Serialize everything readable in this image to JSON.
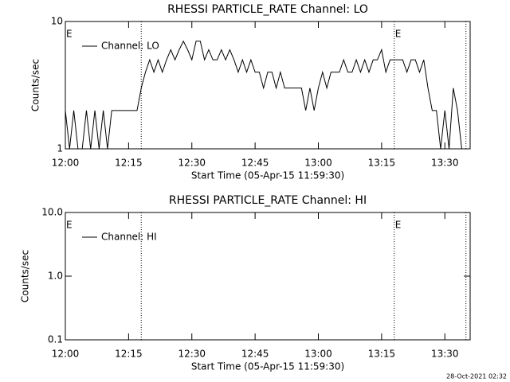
{
  "chart_data": [
    {
      "type": "line",
      "title": "RHESSI PARTICLE_RATE Channel: LO",
      "xlabel": "Start Time (05-Apr-15 11:59:30)",
      "ylabel": "Counts/sec",
      "log_y": true,
      "ylim": [
        1,
        10
      ],
      "yticks": [
        1,
        10
      ],
      "xlim": [
        "12:00",
        "13:36"
      ],
      "xticks": [
        "12:00",
        "12:15",
        "12:30",
        "12:45",
        "13:00",
        "13:15",
        "13:30"
      ],
      "legend": "upper left",
      "vlines": [
        "12:18",
        "13:18",
        "13:35"
      ],
      "marker_labels": [
        {
          "x": "12:00",
          "label": "E"
        },
        {
          "x": "13:18",
          "label": "E"
        }
      ],
      "x": [
        "12:00",
        "12:01",
        "12:02",
        "12:03",
        "12:04",
        "12:05",
        "12:06",
        "12:07",
        "12:08",
        "12:09",
        "12:10",
        "12:11",
        "12:12",
        "12:13",
        "12:14",
        "12:15",
        "12:16",
        "12:17",
        "12:18",
        "12:19",
        "12:20",
        "12:21",
        "12:22",
        "12:23",
        "12:24",
        "12:25",
        "12:26",
        "12:27",
        "12:28",
        "12:29",
        "12:30",
        "12:31",
        "12:32",
        "12:33",
        "12:34",
        "12:35",
        "12:36",
        "12:37",
        "12:38",
        "12:39",
        "12:40",
        "12:41",
        "12:42",
        "12:43",
        "12:44",
        "12:45",
        "12:46",
        "12:47",
        "12:48",
        "12:49",
        "12:50",
        "12:51",
        "12:52",
        "12:53",
        "12:54",
        "12:55",
        "12:56",
        "12:57",
        "12:58",
        "12:59",
        "13:00",
        "13:01",
        "13:02",
        "13:03",
        "13:04",
        "13:05",
        "13:06",
        "13:07",
        "13:08",
        "13:09",
        "13:10",
        "13:11",
        "13:12",
        "13:13",
        "13:14",
        "13:15",
        "13:16",
        "13:17",
        "13:18",
        "13:19",
        "13:20",
        "13:21",
        "13:22",
        "13:23",
        "13:24",
        "13:25",
        "13:26",
        "13:27",
        "13:28",
        "13:29",
        "13:30",
        "13:31",
        "13:32",
        "13:33",
        "13:34",
        "13:35"
      ],
      "series": [
        {
          "name": "Channel: LO",
          "color": "#000000",
          "values": [
            2,
            1,
            2,
            1,
            1,
            2,
            1,
            2,
            1,
            2,
            1,
            2,
            2,
            2,
            2,
            2,
            2,
            2,
            3,
            4,
            5,
            4,
            5,
            4,
            5,
            6,
            5,
            6,
            7,
            6,
            5,
            7,
            7,
            5,
            6,
            5,
            5,
            6,
            5,
            6,
            5,
            4,
            5,
            4,
            5,
            4,
            4,
            3,
            4,
            4,
            3,
            4,
            3,
            3,
            3,
            3,
            3,
            2,
            3,
            2,
            3,
            4,
            3,
            4,
            4,
            4,
            5,
            4,
            4,
            5,
            4,
            5,
            4,
            5,
            5,
            6,
            4,
            5,
            5,
            5,
            5,
            4,
            5,
            5,
            4,
            5,
            3,
            2,
            2,
            1,
            2,
            1,
            3,
            2,
            1,
            1
          ]
        }
      ]
    },
    {
      "type": "line",
      "title": "RHESSI PARTICLE_RATE Channel: HI",
      "xlabel": "Start Time (05-Apr-15 11:59:30)",
      "ylabel": "Counts/sec",
      "log_y": true,
      "ylim": [
        0.1,
        10
      ],
      "yticks": [
        0.1,
        {
          "value": 1,
          "label": "1.0"
        },
        {
          "value": 10,
          "label": "10.0"
        }
      ],
      "xlim": [
        "12:00",
        "13:36"
      ],
      "xticks": [
        "12:00",
        "12:15",
        "12:30",
        "12:45",
        "13:00",
        "13:15",
        "13:30"
      ],
      "legend": "upper left",
      "vlines": [
        "12:18",
        "13:18",
        "13:35"
      ],
      "marker_labels": [
        {
          "x": "12:00",
          "label": "E"
        },
        {
          "x": "13:18",
          "label": "E"
        }
      ],
      "x": [],
      "series": [
        {
          "name": "Channel: HI",
          "color": "#000000",
          "values": []
        }
      ]
    }
  ],
  "footer": "28-Oct-2021 02:32"
}
